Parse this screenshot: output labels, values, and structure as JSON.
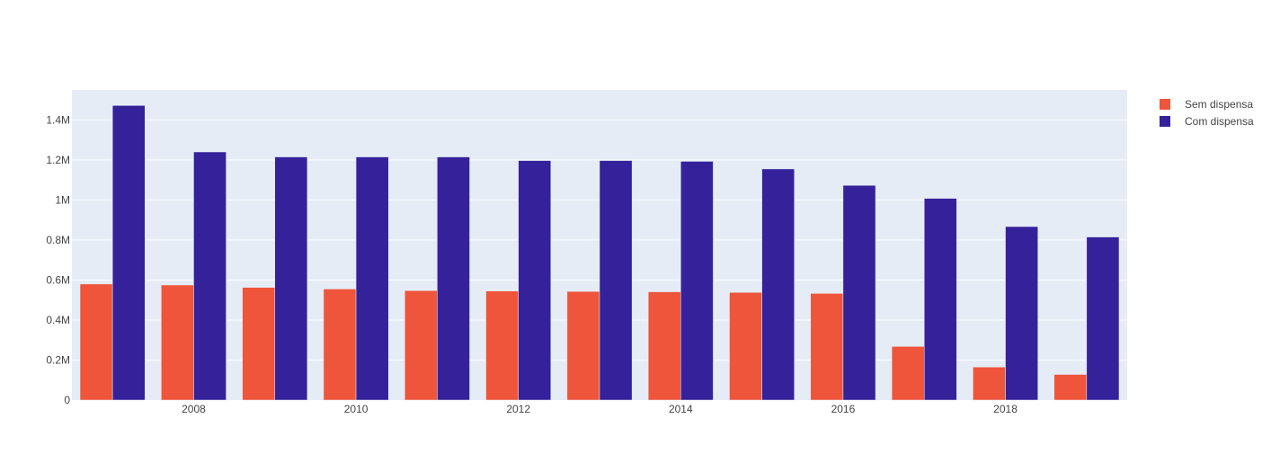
{
  "chart_data": {
    "type": "bar",
    "x": [
      2007,
      2008,
      2009,
      2010,
      2011,
      2012,
      2013,
      2014,
      2015,
      2016,
      2017,
      2018,
      2019
    ],
    "x_tick_labels": [
      "2008",
      "2010",
      "2012",
      "2014",
      "2016",
      "2018"
    ],
    "y_tick_labels": [
      "0",
      "0.2M",
      "0.4M",
      "0.6M",
      "0.8M",
      "1M",
      "1.2M",
      "1.4M"
    ],
    "y_ticks": [
      0,
      200000,
      400000,
      600000,
      800000,
      1000000,
      1200000,
      1400000
    ],
    "ylim": [
      0,
      1550000
    ],
    "series": [
      {
        "name": "Sem dispensa",
        "color": "#EF553B",
        "values": [
          580000,
          575000,
          563000,
          555000,
          547000,
          545000,
          543000,
          541000,
          538000,
          533000,
          268000,
          165000,
          128000
        ]
      },
      {
        "name": "Com dispensa",
        "color": "#35219A",
        "values": [
          1472000,
          1240000,
          1215000,
          1215000,
          1215000,
          1197000,
          1197000,
          1193000,
          1155000,
          1073000,
          1008000,
          867000,
          815000
        ]
      }
    ],
    "legend_position": "top-right",
    "grid": true,
    "plot_background": "#E5ECF6"
  }
}
